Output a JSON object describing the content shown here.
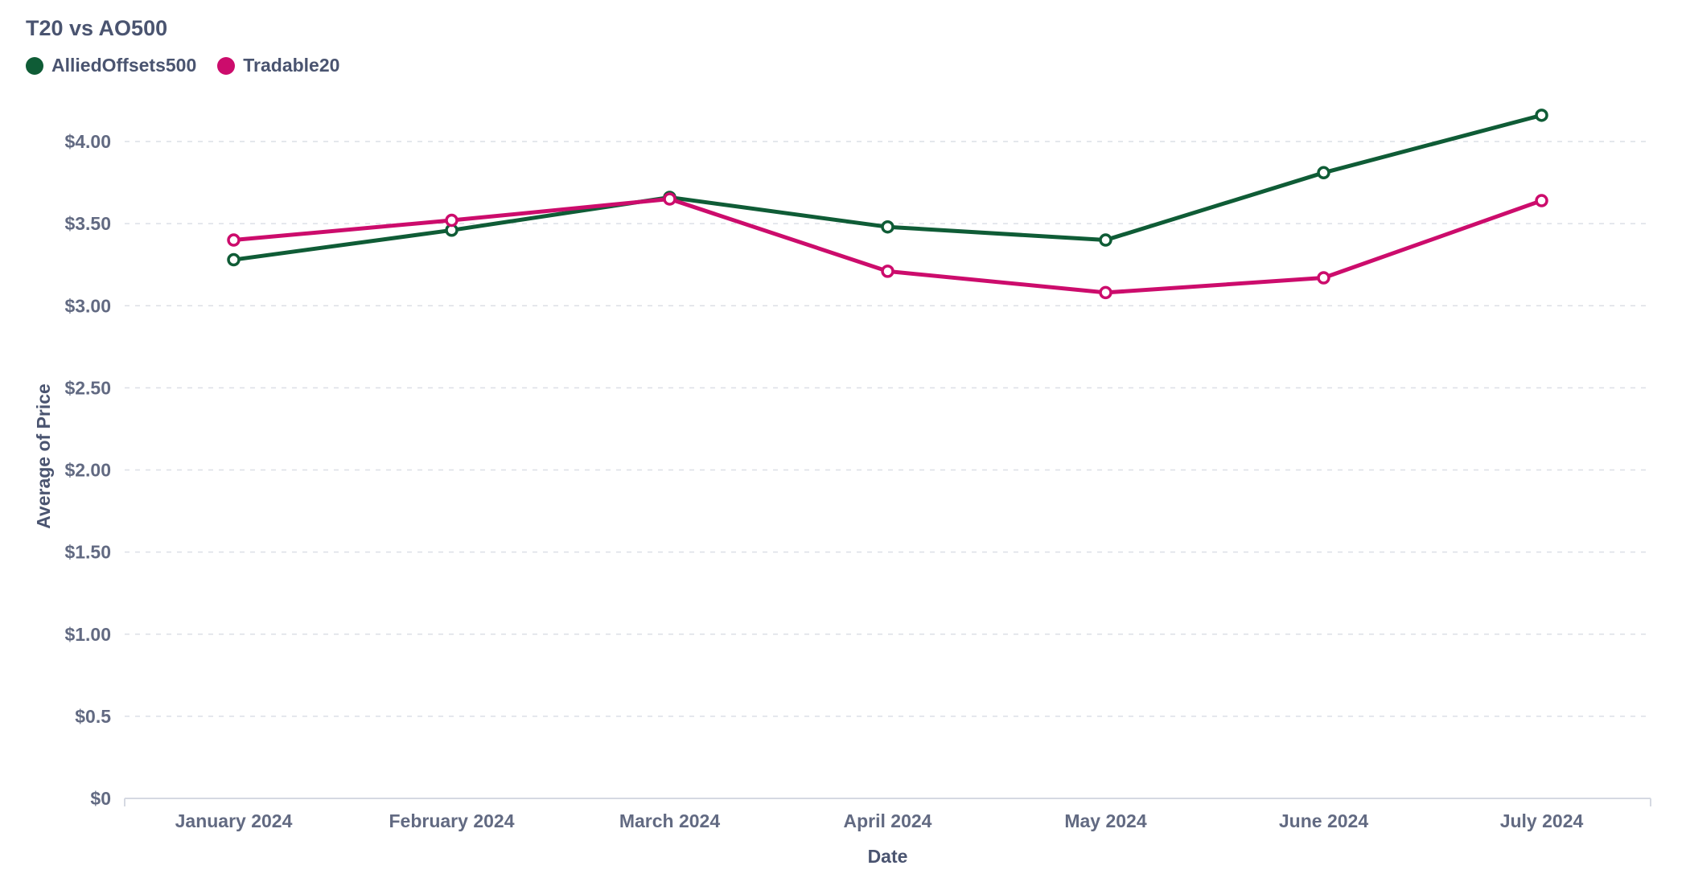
{
  "chart_data": {
    "type": "line",
    "title": "T20 vs AO500",
    "xlabel": "Date",
    "ylabel": "Average of Price",
    "categories": [
      "January 2024",
      "February 2024",
      "March 2024",
      "April 2024",
      "May 2024",
      "June 2024",
      "July 2024"
    ],
    "y_ticks": [
      {
        "value": 0,
        "label": "$0"
      },
      {
        "value": 0.5,
        "label": "$0.5"
      },
      {
        "value": 1.0,
        "label": "$1.00"
      },
      {
        "value": 1.5,
        "label": "$1.50"
      },
      {
        "value": 2.0,
        "label": "$2.00"
      },
      {
        "value": 2.5,
        "label": "$2.50"
      },
      {
        "value": 3.0,
        "label": "$3.00"
      },
      {
        "value": 3.5,
        "label": "$3.50"
      },
      {
        "value": 4.0,
        "label": "$4.00"
      }
    ],
    "ylim": [
      0,
      4.0
    ],
    "grid": true,
    "legend_position": "top-left",
    "series": [
      {
        "name": "AlliedOffsets500",
        "color": "#0f5c36",
        "values": [
          3.28,
          3.46,
          3.66,
          3.48,
          3.4,
          3.81,
          4.16
        ]
      },
      {
        "name": "Tradable20",
        "color": "#cc0c6c",
        "values": [
          3.4,
          3.52,
          3.65,
          3.21,
          3.08,
          3.17,
          3.64
        ]
      }
    ]
  }
}
